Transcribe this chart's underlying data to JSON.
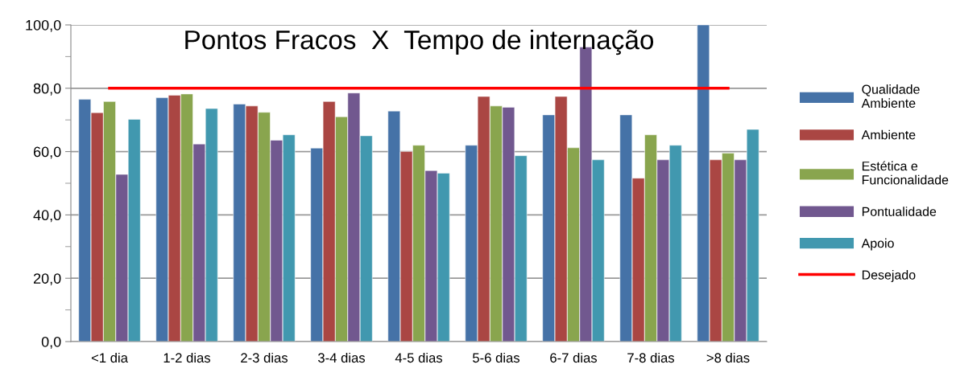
{
  "chart_data": {
    "type": "bar",
    "title": "Pontos Fracos  X  Tempo de internação",
    "categories": [
      "<1 dia",
      "1-2 dias",
      "2-3 dias",
      "3-4 dias",
      "4-5 dias",
      "5-6 dias",
      "6-7 dias",
      "7-8 dias",
      ">8 dias"
    ],
    "series": [
      {
        "name": "Qualidade\nAmbiente",
        "color": "#4572a7",
        "values": [
          76.5,
          77.0,
          75.0,
          61.1,
          72.8,
          62.0,
          71.6,
          71.6,
          100.0
        ]
      },
      {
        "name": "Ambiente",
        "color": "#aa4643",
        "values": [
          72.3,
          77.8,
          74.4,
          75.8,
          60.0,
          77.4,
          77.4,
          51.6,
          57.4
        ]
      },
      {
        "name": "Estética e\nFuncionalidade",
        "color": "#89a54e",
        "values": [
          75.8,
          78.2,
          72.4,
          71.0,
          62.0,
          74.4,
          61.2,
          65.3,
          59.5
        ]
      },
      {
        "name": "Pontualidade",
        "color": "#71588f",
        "values": [
          52.8,
          62.4,
          63.6,
          78.5,
          54.0,
          74.0,
          93.0,
          57.4,
          57.4
        ]
      },
      {
        "name": "Apoio",
        "color": "#4198af",
        "values": [
          70.2,
          73.6,
          65.3,
          65.0,
          53.2,
          58.7,
          57.4,
          62.0,
          67.0
        ]
      },
      {
        "name": "Desejado",
        "type": "line",
        "color": "#ff0000",
        "values": [
          80,
          80,
          80,
          80,
          80,
          80,
          80,
          80,
          80
        ]
      }
    ],
    "ylim": [
      0,
      100
    ],
    "yticks": [
      {
        "value": 0,
        "label": "0,0"
      },
      {
        "value": 20,
        "label": "20,0"
      },
      {
        "value": 40,
        "label": "40,0"
      },
      {
        "value": 60,
        "label": "60,0"
      },
      {
        "value": 80,
        "label": "80,0"
      },
      {
        "value": 100,
        "label": "100,0"
      }
    ],
    "grid": "y",
    "legend": "right"
  }
}
